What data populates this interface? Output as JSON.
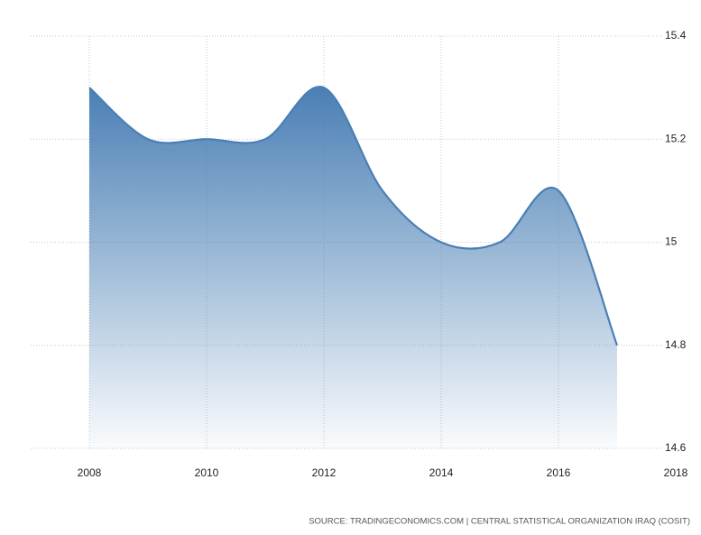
{
  "chart_data": {
    "type": "area",
    "x": [
      2008,
      2009,
      2010,
      2011,
      2012,
      2013,
      2014,
      2015,
      2016,
      2017
    ],
    "series": [
      {
        "color": "#4a7fb5",
        "values": [
          15.3,
          15.2,
          15.2,
          15.2,
          15.3,
          15.1,
          15.0,
          15.0,
          15.1,
          14.8
        ]
      }
    ],
    "xlim": [
      2007,
      2018
    ],
    "xticks": [
      2008,
      2010,
      2012,
      2014,
      2016,
      2018
    ],
    "ylim": [
      14.6,
      15.4
    ],
    "yticks": [
      14.6,
      14.8,
      15,
      15.2,
      15.4
    ],
    "grid": true,
    "source": "SOURCE: TRADINGECONOMICS.COM | CENTRAL STATISTICAL ORGANIZATION IRAQ (COSIT)"
  }
}
